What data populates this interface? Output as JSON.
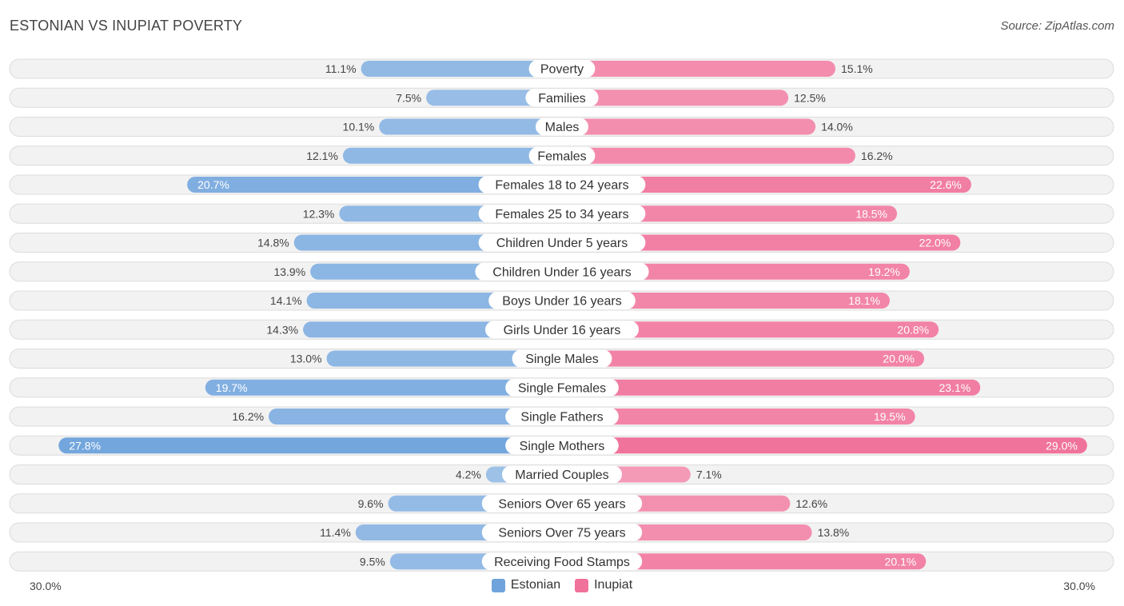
{
  "title": "ESTONIAN VS INUPIAT POVERTY",
  "source": "Source: ZipAtlas.com",
  "axis": {
    "left_label": "30.0%",
    "right_label": "30.0%"
  },
  "legend": [
    {
      "name": "Estonian",
      "color": "#6fa3dc"
    },
    {
      "name": "Inupiat",
      "color": "#f0719a"
    }
  ],
  "chart_data": {
    "type": "bar",
    "orientation": "diverging-horizontal",
    "title": "ESTONIAN VS INUPIAT POVERTY",
    "xlim": [
      -30,
      30
    ],
    "unit": "%",
    "categories": [
      "Poverty",
      "Families",
      "Males",
      "Females",
      "Females 18 to 24 years",
      "Females 25 to 34 years",
      "Children Under 5 years",
      "Children Under 16 years",
      "Boys Under 16 years",
      "Girls Under 16 years",
      "Single Males",
      "Single Females",
      "Single Fathers",
      "Single Mothers",
      "Married Couples",
      "Seniors Over 65 years",
      "Seniors Over 75 years",
      "Receiving Food Stamps"
    ],
    "series": [
      {
        "name": "Estonian",
        "color": "#6fa3dc",
        "values": [
          11.1,
          7.5,
          10.1,
          12.1,
          20.7,
          12.3,
          14.8,
          13.9,
          14.1,
          14.3,
          13.0,
          19.7,
          16.2,
          27.8,
          4.2,
          9.6,
          11.4,
          9.5
        ],
        "labels": [
          "11.1%",
          "7.5%",
          "10.1%",
          "12.1%",
          "20.7%",
          "12.3%",
          "14.8%",
          "13.9%",
          "14.1%",
          "14.3%",
          "13.0%",
          "19.7%",
          "16.2%",
          "27.8%",
          "4.2%",
          "9.6%",
          "11.4%",
          "9.5%"
        ]
      },
      {
        "name": "Inupiat",
        "color": "#f0719a",
        "values": [
          15.1,
          12.5,
          14.0,
          16.2,
          22.6,
          18.5,
          22.0,
          19.2,
          18.1,
          20.8,
          20.0,
          23.1,
          19.5,
          29.0,
          7.1,
          12.6,
          13.8,
          20.1
        ],
        "labels": [
          "15.1%",
          "12.5%",
          "14.0%",
          "16.2%",
          "22.6%",
          "18.5%",
          "22.0%",
          "19.2%",
          "18.1%",
          "20.8%",
          "20.0%",
          "23.1%",
          "19.5%",
          "29.0%",
          "7.1%",
          "12.6%",
          "13.8%",
          "20.1%"
        ]
      }
    ]
  }
}
